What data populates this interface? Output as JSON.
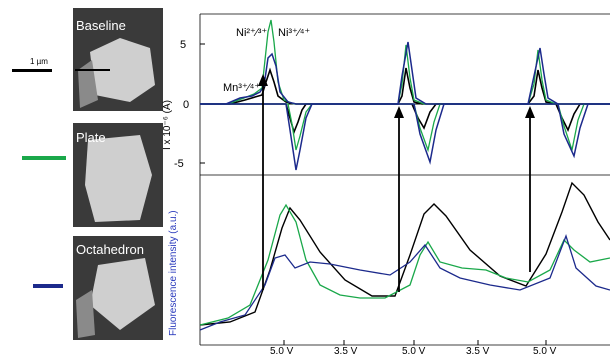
{
  "legend": {
    "scale_bar_label": "1 µm",
    "items": [
      {
        "label": "Baseline",
        "color": "#000000"
      },
      {
        "label": "Plate",
        "color": "#1aa84a"
      },
      {
        "label": "Octahedron",
        "color": "#1c2a8c"
      }
    ]
  },
  "chart_data": [
    {
      "type": "line",
      "title": "",
      "ylabel": "I x 10⁻⁶ (A)",
      "yticks": [
        "5",
        "0",
        "-5"
      ],
      "ylim": [
        -8,
        8
      ],
      "annotations": [
        "Ni²⁺⁄³⁺",
        "Ni³⁺⁄⁴⁺",
        "Mn³⁺⁄⁴⁺"
      ],
      "series": [
        {
          "name": "Baseline",
          "color": "#000000"
        },
        {
          "name": "Plate",
          "color": "#1aa84a"
        },
        {
          "name": "Octahedron",
          "color": "#1c2a8c"
        }
      ]
    },
    {
      "type": "line",
      "ylabel": "Fluorescence intensity (a.u.)",
      "xtick_labels": [
        "5.0 V",
        "3.5 V",
        "5.0 V",
        "3.5 V",
        "5.0 V"
      ],
      "series": [
        {
          "name": "Baseline",
          "color": "#000000"
        },
        {
          "name": "Plate",
          "color": "#1aa84a"
        },
        {
          "name": "Octahedron",
          "color": "#1c2a8c"
        }
      ]
    }
  ]
}
